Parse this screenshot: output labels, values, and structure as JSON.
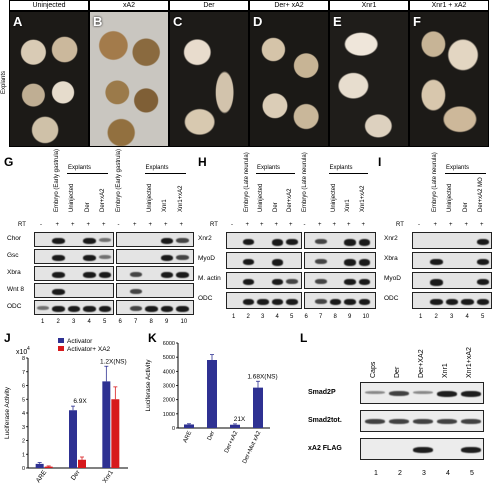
{
  "top": {
    "headers": [
      "Uninjected",
      "xA2",
      "Der",
      "Der+ xA2",
      "Xnr1",
      "Xnr1 + xA2"
    ],
    "letters": [
      "A",
      "B",
      "C",
      "D",
      "E",
      "F"
    ],
    "explants_label": "Explants"
  },
  "g": {
    "letter": "G",
    "col_labels": [
      "Embryo (Early gastrula)",
      "Uninjected",
      "Der",
      "Der+xA2",
      "Embryo (Early gastrula)",
      "Uninjected",
      "Xnr1",
      "Xnr1+xA2"
    ],
    "explants": "Explants",
    "rt_label": "RT",
    "rt_signs": [
      "-",
      "+",
      "+",
      "+",
      "+",
      "-",
      "+",
      "+",
      "+",
      "+"
    ],
    "rows": [
      "Chor",
      "Gsc",
      "Xbra",
      "Wnt 8",
      "ODC"
    ],
    "lanes": [
      "1",
      "2",
      "3",
      "4",
      "5",
      "6",
      "7",
      "8",
      "9",
      "10"
    ]
  },
  "h": {
    "letter": "H",
    "col_labels": [
      "Embryo (Late neurula)",
      "Uninjected",
      "Der",
      "Der+xA2",
      "Embryo (Late neurula)",
      "Uninjected",
      "Xnr1",
      "Xnr1+xA2"
    ],
    "explants": "Explants",
    "rt_label": "RT",
    "rt_signs": [
      "-",
      "+",
      "+",
      "+",
      "+",
      "-",
      "+",
      "+",
      "+",
      "+"
    ],
    "rows": [
      "Xnr2",
      "MyoD",
      "M. actin",
      "ODC"
    ],
    "lanes": [
      "1",
      "2",
      "3",
      "4",
      "5",
      "6",
      "7",
      "8",
      "9",
      "10"
    ]
  },
  "i": {
    "letter": "I",
    "col_labels": [
      "Embryo (Late neurula)",
      "Uninjected",
      "Der",
      "Der+xA2 MO"
    ],
    "explants": "Explants",
    "rt_label": "RT",
    "rt_signs": [
      "-",
      "+",
      "+",
      "+",
      "+"
    ],
    "rows": [
      "Xnr2",
      "Xbra",
      "MyoD",
      "ODC"
    ],
    "lanes": [
      "1",
      "2",
      "3",
      "4",
      "5"
    ]
  },
  "l": {
    "letter": "L",
    "col_labels": [
      "Caps",
      "Der",
      "Der+XA2",
      "Xnr1",
      "Xnr1+xA2"
    ],
    "rows": [
      "Smad2P",
      "Smad2tot.",
      "xA2 FLAG"
    ],
    "lanes": [
      "1",
      "2",
      "3",
      "4",
      "5"
    ]
  },
  "chart_data": [
    {
      "panel": "J",
      "type": "bar",
      "categories": [
        "ARE",
        "Der",
        "Xnr1"
      ],
      "series": [
        {
          "name": "Activator",
          "values": [
            0.3,
            4.2,
            6.3
          ],
          "errors": [
            0.1,
            0.3,
            1.1
          ],
          "color": "#2e3192"
        },
        {
          "name": "Activator+ XA2",
          "values": [
            0.1,
            0.6,
            5.0
          ],
          "errors": [
            0.05,
            0.2,
            0.9
          ],
          "color": "#d7191c"
        }
      ],
      "annotations": [
        {
          "category": "Der",
          "text": "6.9X"
        },
        {
          "category": "Xnr1",
          "text": "1.2X(NS)"
        }
      ],
      "ylabel": "Luciferase Activity",
      "multiplier_label": "x10",
      "multiplier_exp": "4",
      "ylim": [
        0,
        8
      ],
      "yticks": [
        "0",
        "1",
        "2",
        "3",
        "4",
        "5",
        "6",
        "7",
        "8"
      ]
    },
    {
      "panel": "K",
      "type": "bar",
      "categories": [
        "ARE",
        "Der",
        "Der+xA2",
        "Der+Mut xA2"
      ],
      "values": [
        250,
        4800,
        230,
        2850
      ],
      "errors": [
        50,
        380,
        60,
        450
      ],
      "color": "#2e3192",
      "annotations": [
        {
          "category": "Der+xA2",
          "text": "21X"
        },
        {
          "category": "Der+Mut xA2",
          "text": "1.68X(NS)"
        }
      ],
      "ylabel": "Luciferase Activity",
      "ylim": [
        0,
        6000
      ],
      "yticks": [
        "0",
        "1000",
        "2000",
        "3000",
        "4000",
        "5000",
        "6000"
      ]
    }
  ]
}
